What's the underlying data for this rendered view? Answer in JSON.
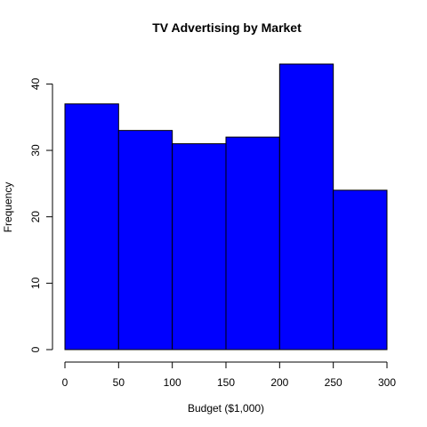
{
  "chart_data": {
    "type": "bar",
    "subtype": "histogram",
    "title": "TV Advertising by Market",
    "xlabel": "Budget ($1,000)",
    "ylabel": "Frequency",
    "bins": [
      {
        "from": 0,
        "to": 50,
        "count": 37
      },
      {
        "from": 50,
        "to": 100,
        "count": 33
      },
      {
        "from": 100,
        "to": 150,
        "count": 31
      },
      {
        "from": 150,
        "to": 200,
        "count": 32
      },
      {
        "from": 200,
        "to": 250,
        "count": 43
      },
      {
        "from": 250,
        "to": 300,
        "count": 24
      }
    ],
    "xlim": [
      0,
      300
    ],
    "ylim": [
      0,
      43
    ],
    "xticks": [
      0,
      50,
      100,
      150,
      200,
      250,
      300
    ],
    "yticks": [
      0,
      10,
      20,
      30,
      40
    ],
    "bar_color": "#0000ff",
    "grid": false,
    "legend": "none"
  }
}
